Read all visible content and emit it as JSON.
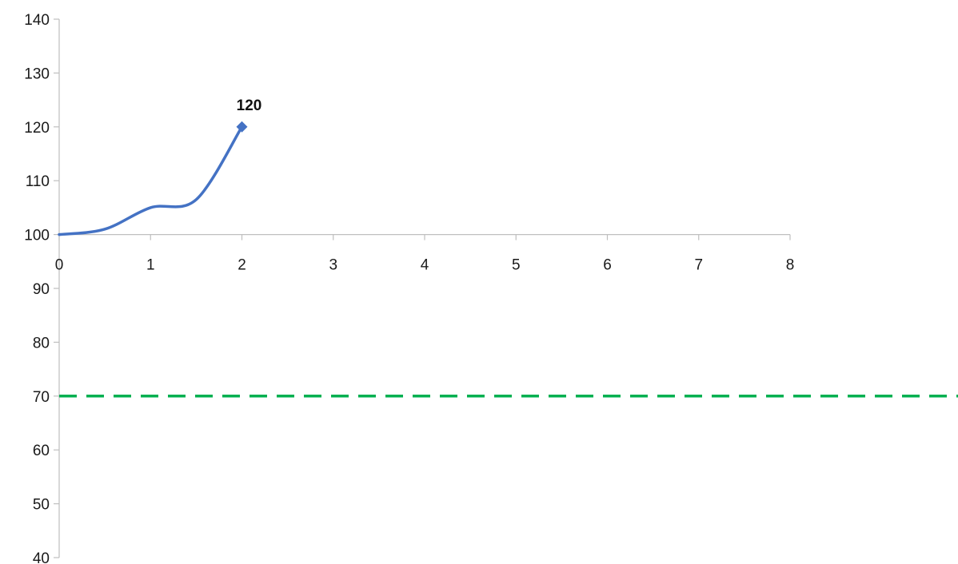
{
  "chart_data": {
    "type": "line",
    "title": "",
    "xlabel": "",
    "ylabel": "",
    "xlim": [
      0,
      8
    ],
    "ylim": [
      40,
      140
    ],
    "x_ticks": [
      "0",
      "1",
      "2",
      "3",
      "4",
      "5",
      "6",
      "7",
      "8"
    ],
    "y_ticks": [
      "40",
      "50",
      "60",
      "70",
      "80",
      "90",
      "100",
      "110",
      "120",
      "130",
      "140"
    ],
    "x_axis_crosses_y_at": 100,
    "grid": false,
    "legend": "none",
    "series": [
      {
        "x": [
          0,
          0.5,
          1,
          1.5,
          2
        ],
        "y": [
          100,
          101,
          105,
          106.5,
          120
        ],
        "smooth": true,
        "color": "#4472c4",
        "end_marker": "diamond",
        "data_labels": [
          {
            "x": 2,
            "y": 120,
            "text": "120"
          }
        ]
      }
    ],
    "reference_lines": [
      {
        "y": 70,
        "style": "dashed",
        "color": "#00b050"
      }
    ]
  }
}
